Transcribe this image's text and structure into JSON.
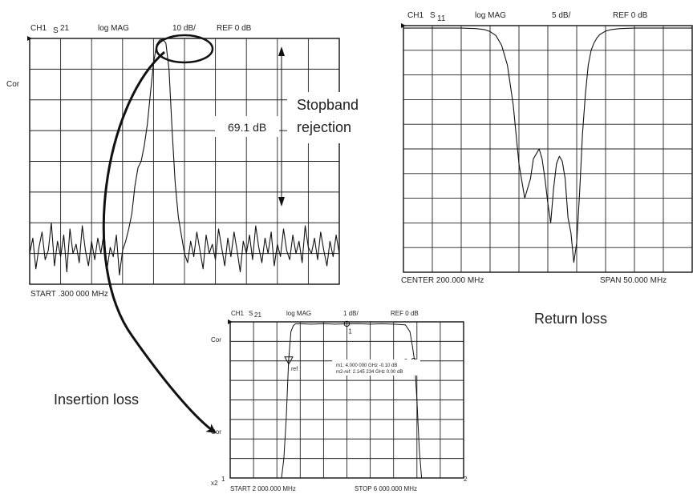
{
  "chart_data": [
    {
      "id": "stopband",
      "type": "line",
      "header": {
        "channel": "CH1",
        "param": "S",
        "param_sub": "21",
        "format": "log MAG",
        "scale": "10 dB/",
        "ref": "REF  0 dB"
      },
      "side_labels": [
        "Cor"
      ],
      "footer_left": "START  .300 000 MHz",
      "ylim": [
        -80,
        0
      ],
      "grid": "10x8",
      "annotation": {
        "value_label": "69.1 dB",
        "callout_line1": "Stopband",
        "callout_line2": "rejection"
      },
      "series": [
        {
          "x": [
            0.0,
            0.01,
            0.02,
            0.03,
            0.04,
            0.05,
            0.06,
            0.07,
            0.08,
            0.09,
            0.1,
            0.11,
            0.12,
            0.13,
            0.14,
            0.15,
            0.16,
            0.17,
            0.18,
            0.19,
            0.2,
            0.21,
            0.22,
            0.23,
            0.24,
            0.25,
            0.26,
            0.27,
            0.28,
            0.29,
            0.3,
            0.31,
            0.32,
            0.33,
            0.34,
            0.35,
            0.36,
            0.37,
            0.38,
            0.39,
            0.4,
            0.41,
            0.42,
            0.43,
            0.44,
            0.45,
            0.46,
            0.47,
            0.48,
            0.49,
            0.5,
            0.51,
            0.52,
            0.53,
            0.54,
            0.55,
            0.56,
            0.57,
            0.58,
            0.59,
            0.6,
            0.61,
            0.62,
            0.63,
            0.64,
            0.65,
            0.66,
            0.67,
            0.68,
            0.69,
            0.7,
            0.71,
            0.72,
            0.73,
            0.74,
            0.75,
            0.76,
            0.77,
            0.78,
            0.79,
            0.8,
            0.81,
            0.82,
            0.83,
            0.84,
            0.85,
            0.86,
            0.87,
            0.88,
            0.89,
            0.9,
            0.91,
            0.92,
            0.93,
            0.94,
            0.95,
            0.96,
            0.97,
            0.98,
            0.99,
            1.0
          ],
          "values": [
            -70,
            -65,
            -75,
            -68,
            -63,
            -72,
            -69,
            -60,
            -74,
            -66,
            -71,
            -64,
            -76,
            -62,
            -70,
            -67,
            -73,
            -61,
            -69,
            -74,
            -66,
            -72,
            -65,
            -70,
            -63,
            -75,
            -68,
            -71,
            -64,
            -77,
            -69,
            -66,
            -62,
            -57,
            -48,
            -42,
            -40,
            -35,
            -28,
            -18,
            -8,
            -2,
            -0.5,
            -0.3,
            -1.5,
            -10,
            -30,
            -47,
            -58,
            -64,
            -70,
            -73,
            -66,
            -71,
            -63,
            -69,
            -75,
            -64,
            -70,
            -67,
            -72,
            -62,
            -68,
            -74,
            -65,
            -71,
            -63,
            -69,
            -76,
            -66,
            -70,
            -64,
            -72,
            -61,
            -68,
            -73,
            -65,
            -70,
            -63,
            -74,
            -67,
            -71,
            -62,
            -69,
            -72,
            -64,
            -70,
            -66,
            -73,
            -61,
            -68,
            -70,
            -65,
            -72,
            -63,
            -69,
            -74,
            -66,
            -71,
            -64,
            -70
          ]
        }
      ]
    },
    {
      "id": "return_loss",
      "type": "line",
      "header": {
        "channel": "CH1",
        "param": "S",
        "param_sub": "11",
        "format": "log MAG",
        "scale": "5 dB/",
        "ref": "REF  0 dB"
      },
      "footer_left": "CENTER  200.000 MHz",
      "footer_right": "SPAN  50.000 MHz",
      "caption": "Return loss",
      "ylim": [
        -50,
        0
      ],
      "grid": "10x10",
      "series": [
        {
          "x": [
            0.0,
            0.05,
            0.1,
            0.15,
            0.2,
            0.25,
            0.28,
            0.3,
            0.32,
            0.34,
            0.36,
            0.38,
            0.4,
            0.42,
            0.44,
            0.45,
            0.46,
            0.47,
            0.48,
            0.49,
            0.5,
            0.51,
            0.52,
            0.53,
            0.54,
            0.55,
            0.56,
            0.57,
            0.58,
            0.59,
            0.6,
            0.61,
            0.62,
            0.63,
            0.64,
            0.65,
            0.66,
            0.67,
            0.68,
            0.7,
            0.72,
            0.75,
            0.8,
            0.85,
            0.9,
            0.95,
            1.0
          ],
          "values": [
            -0.5,
            -0.5,
            -0.5,
            -0.5,
            -0.5,
            -0.6,
            -0.8,
            -1.2,
            -2,
            -4,
            -8,
            -16,
            -28,
            -35,
            -31,
            -27,
            -26,
            -25,
            -27,
            -31,
            -36,
            -40,
            -33,
            -28,
            -26.5,
            -27.5,
            -31,
            -39,
            -42,
            -48,
            -44,
            -34,
            -22,
            -14,
            -8,
            -5,
            -3.5,
            -2.5,
            -1.8,
            -1.1,
            -0.8,
            -0.6,
            -0.5,
            -0.5,
            -0.5,
            -0.5,
            -0.5
          ]
        }
      ]
    },
    {
      "id": "insertion_loss",
      "type": "line",
      "header": {
        "channel": "CH1",
        "param": "S",
        "param_sub": "21",
        "format": "log MAG",
        "scale": "1 dB/",
        "ref": "REF  0 dB"
      },
      "side_labels": [
        "Cor",
        "Cor",
        "x2"
      ],
      "footer_left": "START 2 000.000 MHz",
      "footer_right": "STOP 6 000.000 MHz",
      "caption": "Insertion loss",
      "ylim": [
        -8,
        0
      ],
      "grid": "10x8",
      "markers": [
        {
          "label": "1",
          "x": 0.4995,
          "y": -0.1
        },
        {
          "label": "2",
          "x": 0.7862,
          "y": -2.0
        },
        {
          "label": "ref",
          "x": 0.2508,
          "y": -2.0
        }
      ],
      "marker_readout": {
        "line1": "m1:      4.000 000 GHz   -0.10 dB",
        "line2": "m2-ref: 2.145 234 GHz   0.00 dB"
      },
      "edge_labels": {
        "left": "1",
        "right": "2"
      },
      "series": [
        {
          "x": [
            0.0,
            0.2,
            0.22,
            0.23,
            0.24,
            0.25,
            0.26,
            0.27,
            0.28,
            0.3,
            0.35,
            0.4,
            0.45,
            0.5,
            0.55,
            0.6,
            0.65,
            0.7,
            0.75,
            0.77,
            0.78,
            0.79,
            0.8,
            0.81,
            0.82,
            0.83,
            0.85,
            1.0
          ],
          "values": [
            -8,
            -8,
            -8,
            -7,
            -5,
            -2,
            -0.5,
            -0.2,
            -0.1,
            -0.1,
            -0.12,
            -0.09,
            -0.12,
            -0.1,
            -0.09,
            -0.12,
            -0.1,
            -0.12,
            -0.15,
            -0.5,
            -1.2,
            -2.0,
            -4,
            -6.5,
            -8,
            -8,
            -8,
            -8
          ]
        }
      ]
    }
  ]
}
